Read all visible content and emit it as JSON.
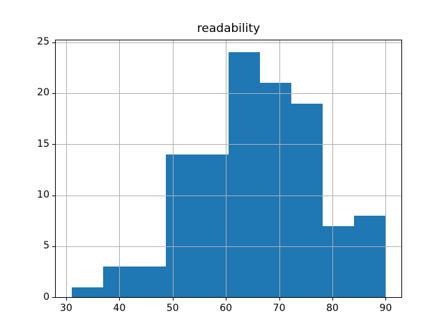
{
  "chart_data": {
    "type": "bar",
    "subtype": "histogram",
    "title": "readability",
    "xlabel": "",
    "ylabel": "",
    "bin_edges": [
      31.0,
      36.9,
      42.8,
      48.7,
      54.6,
      60.5,
      66.4,
      72.3,
      78.2,
      84.1,
      90.0
    ],
    "values": [
      1,
      3,
      3,
      14,
      14,
      24,
      21,
      19,
      7,
      8
    ],
    "total_count": 114,
    "x_ticks": [
      30,
      40,
      50,
      60,
      70,
      80,
      90
    ],
    "x_tick_labels": [
      "30",
      "40",
      "50",
      "60",
      "70",
      "80",
      "90"
    ],
    "y_ticks": [
      0,
      5,
      10,
      15,
      20,
      25
    ],
    "y_tick_labels": [
      "0",
      "5",
      "10",
      "15",
      "20",
      "25"
    ],
    "xlim": [
      28.05,
      92.95
    ],
    "ylim": [
      0,
      25.2
    ],
    "grid": true,
    "grid_above_bars": true,
    "legend": false,
    "colors": {
      "bar": "#1f77b4",
      "grid": "#b0b0b0",
      "axis": "#000000",
      "text": "#000000",
      "background": "#ffffff"
    }
  }
}
